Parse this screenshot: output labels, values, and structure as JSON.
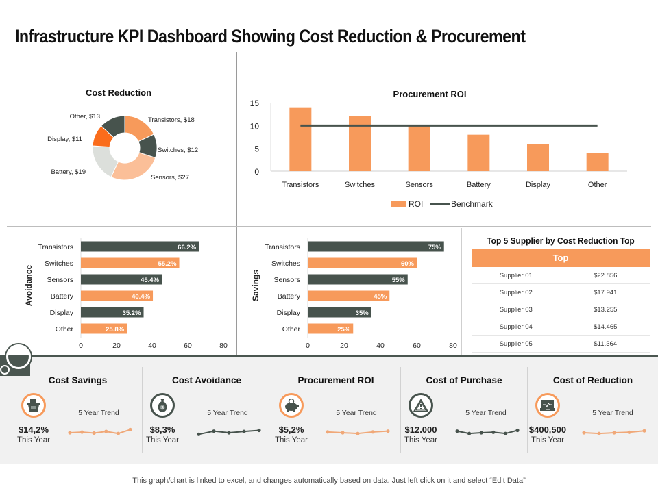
{
  "title": "Infrastructure KPI Dashboard Showing Cost Reduction & Procurement",
  "colors": {
    "orange": "#f79a5b",
    "bright_orange": "#fa6c1b",
    "peach": "#fbbf98",
    "dark": "#47534d",
    "light_gray": "#dcdfdb",
    "benchmark": "#47534d"
  },
  "chart_data": [
    {
      "type": "pie",
      "variant": "donut",
      "title": "Cost Reduction",
      "labels": [
        "Transistors",
        "Switches",
        "Sensors",
        "Battery",
        "Display",
        "Other"
      ],
      "values": [
        18,
        12,
        27,
        19,
        11,
        13
      ],
      "data_labels": [
        "Transistors, $18",
        "Switches, $12",
        "Sensors, $27",
        "Battery, $19",
        "Display, $11",
        "Other, $13"
      ],
      "colors": [
        "#f79a5b",
        "#47534d",
        "#fbbf98",
        "#dcdfdb",
        "#fa6c1b",
        "#47534d"
      ]
    },
    {
      "type": "bar",
      "title": "Procurement ROI",
      "categories": [
        "Transistors",
        "Switches",
        "Sensors",
        "Battery",
        "Display",
        "Other"
      ],
      "series": [
        {
          "name": "ROI",
          "kind": "bar",
          "values": [
            14,
            12,
            10,
            8,
            6,
            4
          ]
        },
        {
          "name": "Benchmark",
          "kind": "line",
          "values": [
            10,
            10,
            10,
            10,
            10,
            10
          ]
        }
      ],
      "yticks": [
        0,
        5,
        10,
        15
      ],
      "ylim": [
        0,
        15
      ],
      "legend": "bottom"
    },
    {
      "type": "bar",
      "orientation": "horizontal",
      "title": "",
      "ylabel": "Avoidance",
      "categories": [
        "Transistors",
        "Switches",
        "Sensors",
        "Battery",
        "Display",
        "Other"
      ],
      "values": [
        66.2,
        55.2,
        45.4,
        40.4,
        35.2,
        25.8
      ],
      "data_labels": [
        "66.2%",
        "55.2%",
        "45.4%",
        "40.4%",
        "35.2%",
        "25.8%"
      ],
      "xticks": [
        0,
        20,
        40,
        60,
        80
      ],
      "xlim": [
        0,
        80
      ]
    },
    {
      "type": "bar",
      "orientation": "horizontal",
      "title": "",
      "ylabel": "Savings",
      "categories": [
        "Transistors",
        "Switches",
        "Sensors",
        "Battery",
        "Display",
        "Other"
      ],
      "values": [
        75,
        60,
        55,
        45,
        35,
        25
      ],
      "data_labels": [
        "75%",
        "60%",
        "55%",
        "45%",
        "35%",
        "25%"
      ],
      "xticks": [
        0,
        20,
        40,
        60,
        80
      ],
      "xlim": [
        0,
        80
      ]
    },
    {
      "type": "table",
      "title": "Top 5 Supplier by Cost Reduction Top",
      "header": "Top",
      "rows": [
        [
          "Supplier 01",
          "$22.856"
        ],
        [
          "Supplier 02",
          "$17.941"
        ],
        [
          "Supplier 03",
          "$13.255"
        ],
        [
          "Supplier 04",
          "$14.465"
        ],
        [
          "Supplier 05",
          "$11.364"
        ]
      ]
    }
  ],
  "kpis": [
    {
      "title": "Cost Savings",
      "icon": "shopping-basket-icon",
      "value": "$14,2%",
      "sub": "This Year",
      "trend_label": "5 Year Trend",
      "trend": [
        3,
        3.4,
        2.8,
        3.8,
        2.5,
        5
      ],
      "theme": "orange"
    },
    {
      "title": "Cost Avoidance",
      "icon": "money-bag-icon",
      "value": "$8,3%",
      "sub": "This Year",
      "trend_label": "5 Year Trend",
      "trend": [
        2,
        4,
        3,
        3.8,
        4.5
      ],
      "theme": "dark"
    },
    {
      "title": "Procurement ROI",
      "icon": "piggy-bank-icon",
      "value": "$5,2%",
      "sub": "This Year",
      "trend_label": "5 Year Trend",
      "trend": [
        3.5,
        3,
        2.5,
        3.5,
        4
      ],
      "theme": "orange"
    },
    {
      "title": "Cost of Purchase",
      "icon": "warning-icon",
      "value": "$12.000",
      "sub": "This Year",
      "trend_label": "5 Year Trend",
      "trend": [
        4,
        2.5,
        3,
        3.3,
        2.5,
        4.5
      ],
      "theme": "dark"
    },
    {
      "title": "Cost of Reduction",
      "icon": "laptop-icon",
      "value": "$400,500",
      "sub": "This Year",
      "trend_label": "5 Year Trend",
      "trend": [
        3,
        2.5,
        3,
        3.3,
        4.2
      ],
      "theme": "orange"
    }
  ],
  "footer": "This graph/chart is linked to excel, and changes automatically based on data. Just left click on it and select “Edit Data”"
}
